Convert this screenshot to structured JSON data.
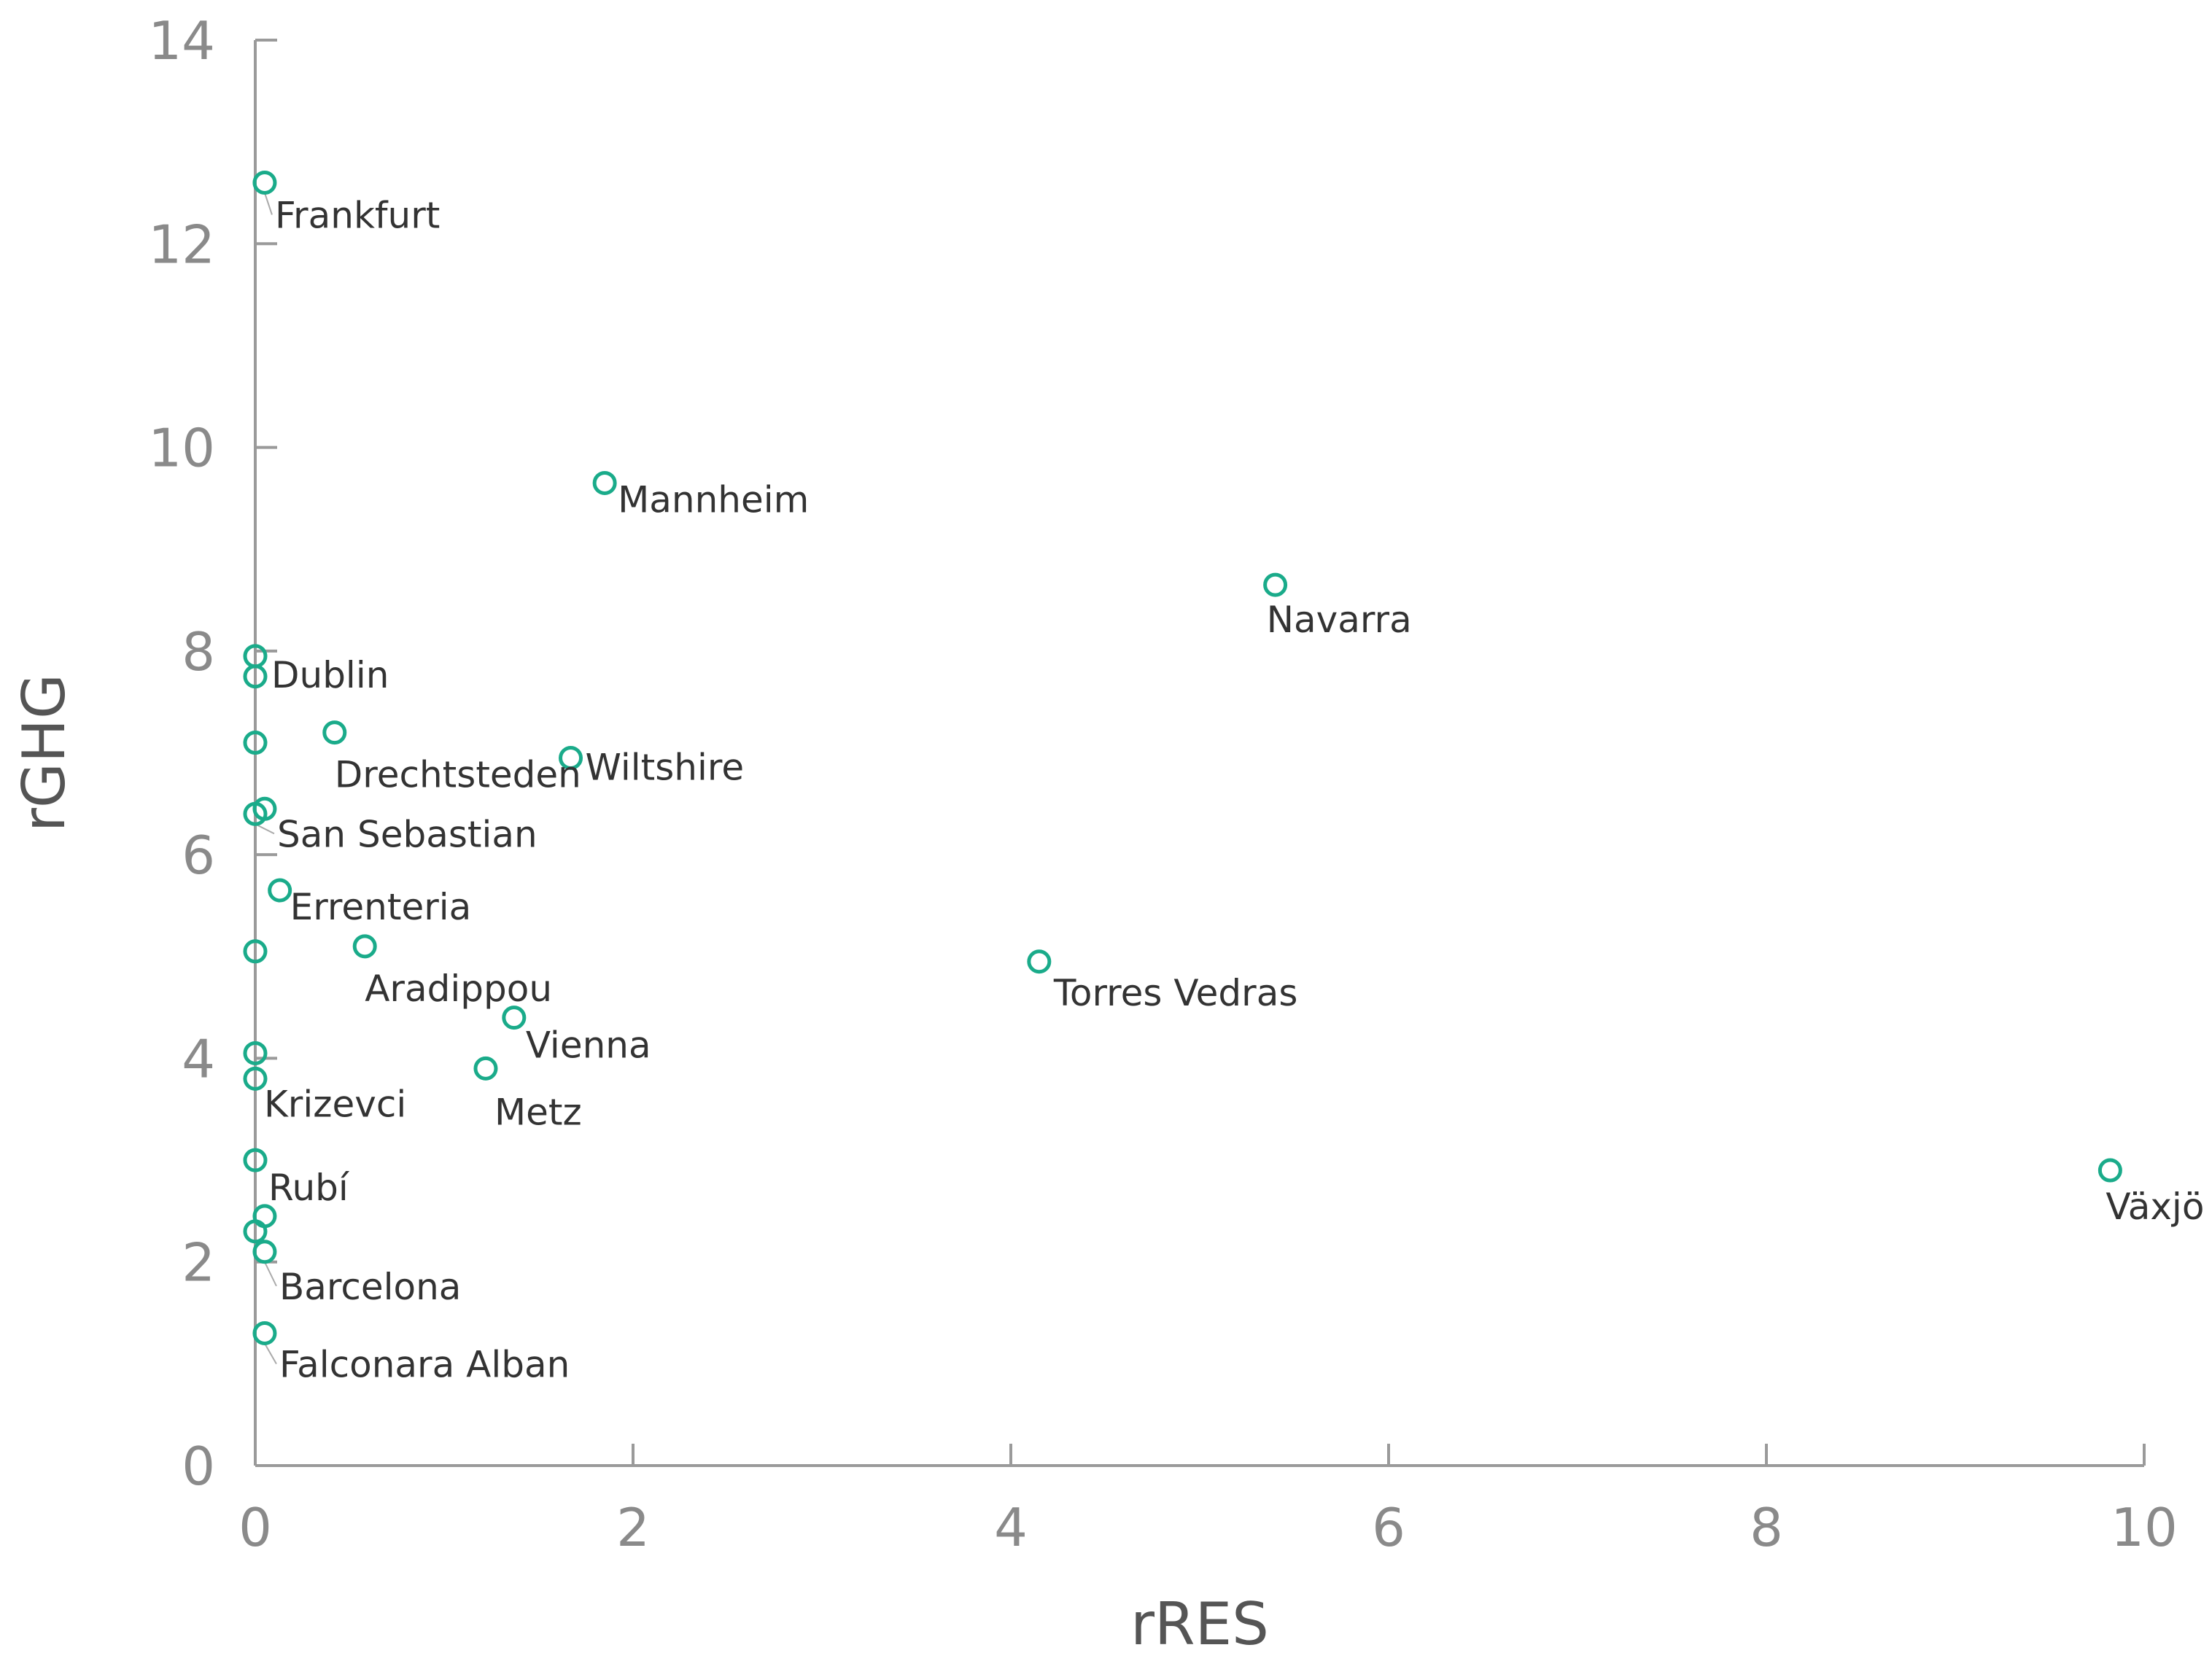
{
  "chart_data": {
    "type": "scatter",
    "title": "",
    "xlabel": "rRES",
    "ylabel": "rGHG",
    "xlim": [
      0,
      10
    ],
    "ylim": [
      0,
      14
    ],
    "x_ticks": [
      "0",
      "2",
      "4",
      "6",
      "8",
      "10"
    ],
    "y_ticks": [
      "0",
      "2",
      "4",
      "6",
      "8",
      "10",
      "12",
      "14"
    ],
    "grid": false,
    "marker_color": "#1aab8a",
    "points": [
      {
        "label": "Frankfurt",
        "x": 0.05,
        "y": 12.6
      },
      {
        "label": "Mannheim",
        "x": 1.85,
        "y": 9.65
      },
      {
        "label": "Navarra",
        "x": 5.4,
        "y": 8.65
      },
      {
        "label": "",
        "x": 0.0,
        "y": 7.95
      },
      {
        "label": "Dublin",
        "x": 0.0,
        "y": 7.75
      },
      {
        "label": "",
        "x": 0.0,
        "y": 7.1
      },
      {
        "label": "Drechtsteden",
        "x": 0.42,
        "y": 7.2
      },
      {
        "label": "Wiltshire",
        "x": 1.67,
        "y": 6.95
      },
      {
        "label": "",
        "x": 0.05,
        "y": 6.45
      },
      {
        "label": "San Sebastian",
        "x": 0.0,
        "y": 6.4
      },
      {
        "label": "Errenteria",
        "x": 0.13,
        "y": 5.65
      },
      {
        "label": "",
        "x": 0.0,
        "y": 5.05
      },
      {
        "label": "Aradippou",
        "x": 0.58,
        "y": 5.1
      },
      {
        "label": "Torres Vedras",
        "x": 4.15,
        "y": 4.95
      },
      {
        "label": "Vienna",
        "x": 1.37,
        "y": 4.4
      },
      {
        "label": "",
        "x": 0.0,
        "y": 4.05
      },
      {
        "label": "Metz",
        "x": 1.22,
        "y": 3.9
      },
      {
        "label": "Krizevci",
        "x": 0.0,
        "y": 3.8
      },
      {
        "label": "Rubí",
        "x": 0.0,
        "y": 3.0
      },
      {
        "label": "",
        "x": 0.05,
        "y": 2.45
      },
      {
        "label": "",
        "x": 0.0,
        "y": 2.3
      },
      {
        "label": "Barcelona",
        "x": 0.05,
        "y": 2.1
      },
      {
        "label": "Falconara Alban",
        "x": 0.05,
        "y": 1.3
      },
      {
        "label": "Växjö",
        "x": 9.82,
        "y": 2.9
      }
    ]
  }
}
